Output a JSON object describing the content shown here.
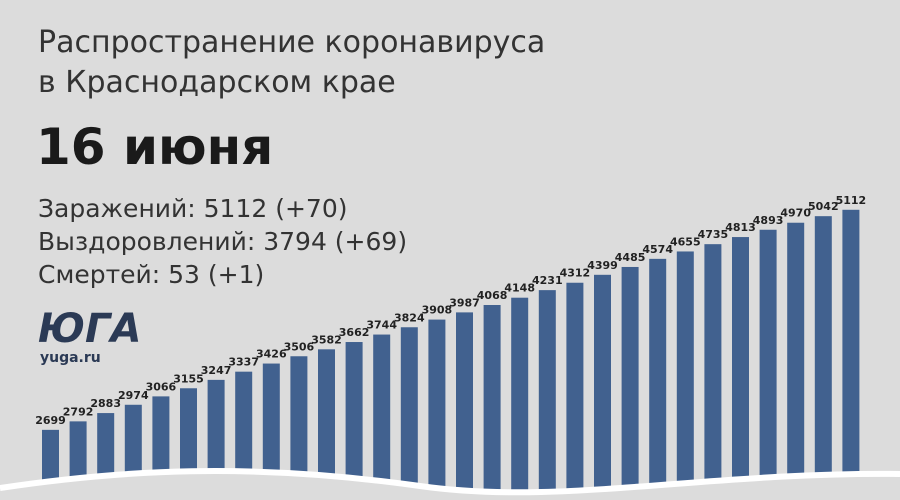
{
  "chart_data": {
    "type": "bar",
    "title_lines": [
      "Распространение коронавируса",
      "в Краснодарском крае"
    ],
    "date": "16 июня",
    "stats": [
      "Заражений: 5112 (+70)",
      "Выздоровлений: 3794 (+69)",
      "Смертей: 53 (+1)"
    ],
    "logo": "ЮГА",
    "source": "yuga.ru",
    "color": "#41618f",
    "values": [
      2699,
      2792,
      2883,
      2974,
      3066,
      3155,
      3247,
      3337,
      3426,
      3506,
      3582,
      3662,
      3744,
      3824,
      3908,
      3987,
      4068,
      4148,
      4231,
      4312,
      4399,
      4485,
      4574,
      4655,
      4735,
      4813,
      4893,
      4970,
      5042,
      5112
    ]
  }
}
